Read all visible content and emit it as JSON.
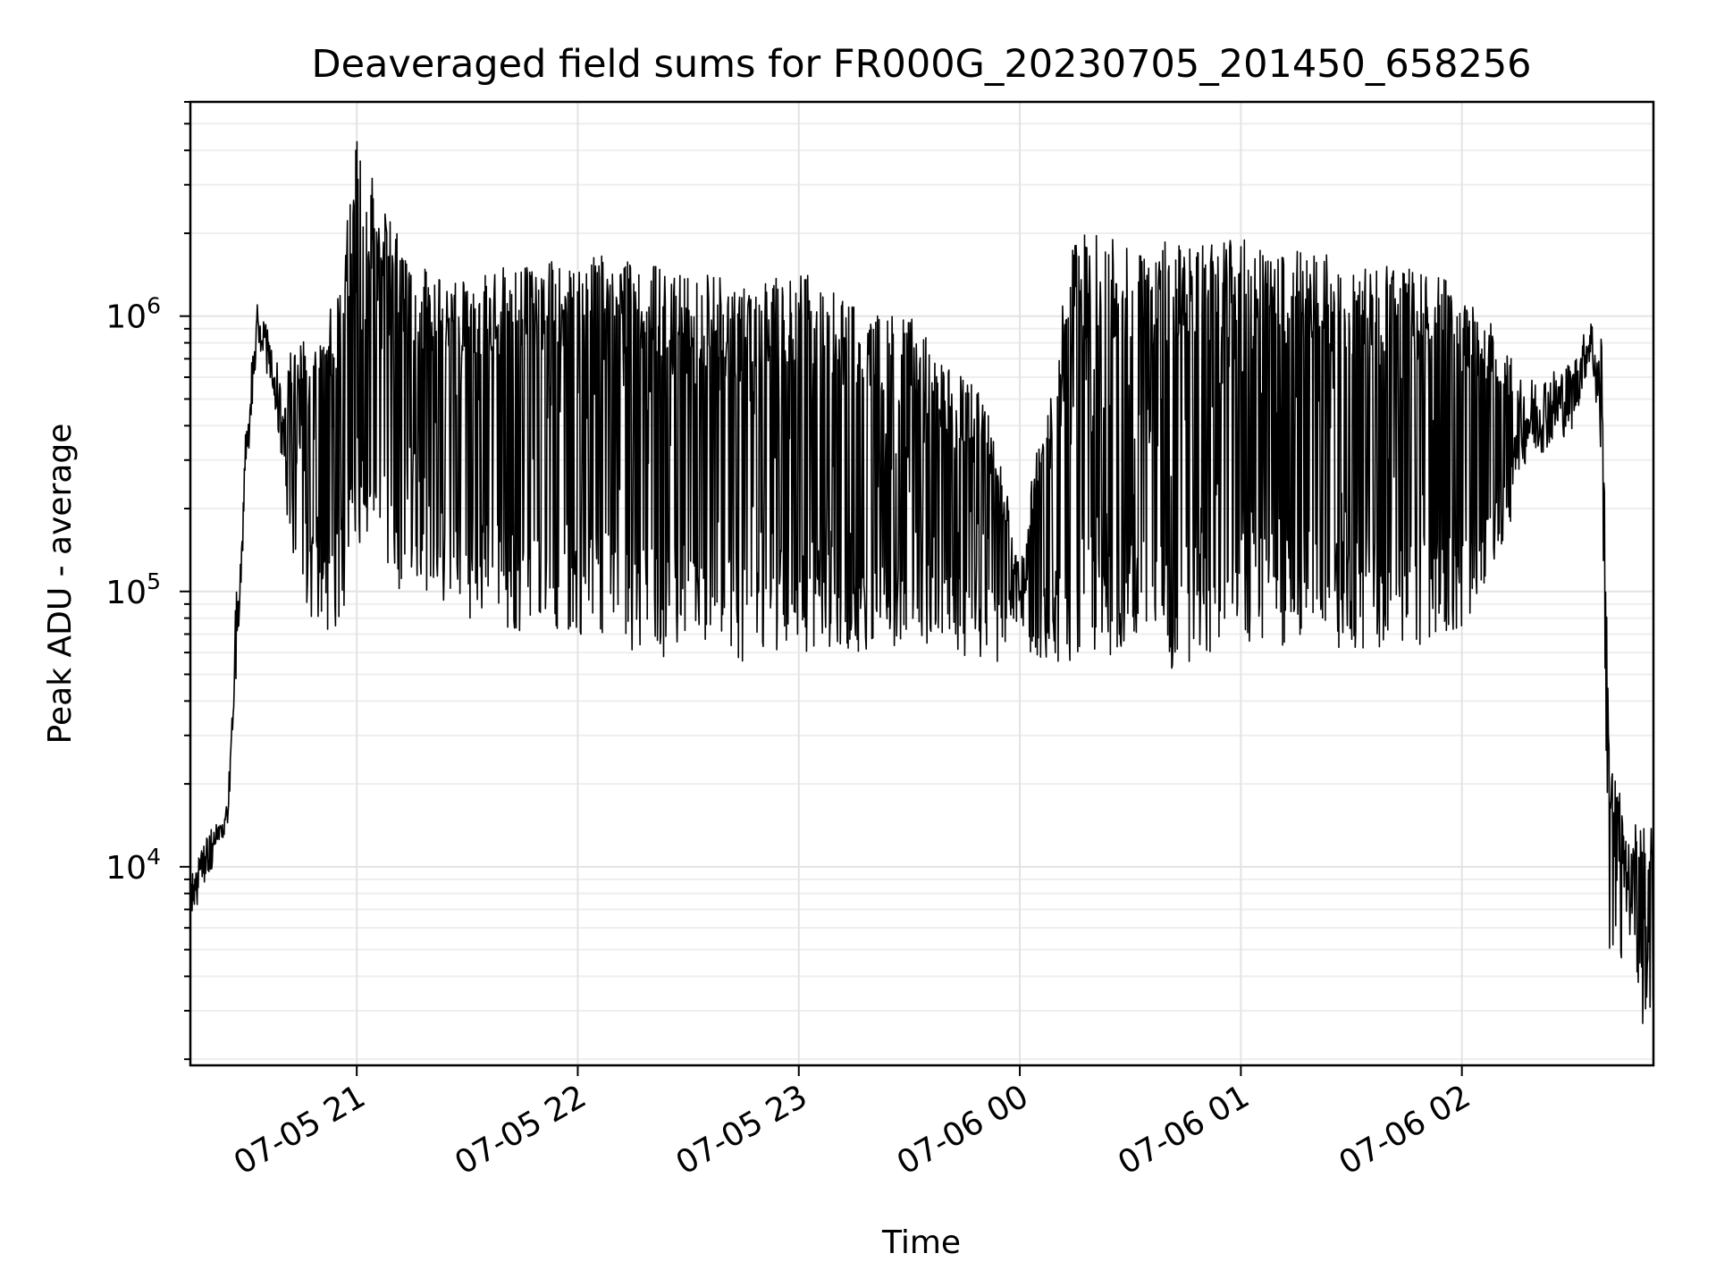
{
  "chart_data": {
    "type": "line",
    "title": "Deaveraged field sums for FR000G_20230705_201450_658256",
    "xlabel": "Time",
    "ylabel": "Peak ADU - average",
    "yscale": "log",
    "xlim": [
      "2023-07-05 20:14:50",
      "2023-07-06 02:52:00"
    ],
    "ylim": [
      1900,
      6000000
    ],
    "grid": true,
    "x_ticks": [
      {
        "t": "2023-07-05 21:00",
        "label": "07-05 21"
      },
      {
        "t": "2023-07-05 22:00",
        "label": "07-05 22"
      },
      {
        "t": "2023-07-05 23:00",
        "label": "07-05 23"
      },
      {
        "t": "2023-07-06 00:00",
        "label": "07-06 00"
      },
      {
        "t": "2023-07-06 01:00",
        "label": "07-06 01"
      },
      {
        "t": "2023-07-06 02:00",
        "label": "07-06 02"
      }
    ],
    "y_ticks": [
      {
        "value": 10000,
        "base": "10",
        "exp": "4"
      },
      {
        "value": 100000,
        "base": "10",
        "exp": "5"
      },
      {
        "value": 1000000,
        "base": "10",
        "exp": "6"
      }
    ],
    "series_color": "#000000",
    "series": [
      {
        "x": [
          "2023-07-05 20:15",
          "2023-07-05 20:20",
          "2023-07-05 20:25",
          "2023-07-05 20:27",
          "2023-07-05 20:30",
          "2023-07-05 20:33",
          "2023-07-05 20:36",
          "2023-07-05 20:40",
          "2023-07-05 20:45",
          "2023-07-05 20:50",
          "2023-07-05 20:55",
          "2023-07-05 21:00",
          "2023-07-05 21:15",
          "2023-07-05 21:30",
          "2023-07-05 21:45",
          "2023-07-05 22:00",
          "2023-07-05 22:15",
          "2023-07-05 22:30",
          "2023-07-05 22:45",
          "2023-07-05 23:00",
          "2023-07-05 23:15",
          "2023-07-05 23:30",
          "2023-07-05 23:40",
          "2023-07-05 23:50",
          "2023-07-06 00:00",
          "2023-07-06 00:15",
          "2023-07-06 00:30",
          "2023-07-06 00:45",
          "2023-07-06 01:00",
          "2023-07-06 01:15",
          "2023-07-06 01:30",
          "2023-07-06 01:45",
          "2023-07-06 02:00",
          "2023-07-06 02:15",
          "2023-07-06 02:30",
          "2023-07-06 02:35",
          "2023-07-06 02:38",
          "2023-07-06 02:40",
          "2023-07-06 02:45",
          "2023-07-06 02:50"
        ],
        "high": [
          10000,
          15000,
          20000,
          100000,
          500000,
          1200000,
          1000000,
          700000,
          800000,
          900000,
          1200000,
          4300000,
          1500000,
          1500000,
          1500000,
          1700000,
          1600000,
          1500000,
          1300000,
          1500000,
          1100000,
          1000000,
          700000,
          550000,
          150000,
          2000000,
          1900000,
          1900000,
          1900000,
          1800000,
          1600000,
          1500000,
          1300000,
          700000,
          800000,
          1100000,
          900000,
          25000,
          15000,
          14000
        ],
        "low": [
          5500,
          8000,
          12000,
          30000,
          200000,
          700000,
          500000,
          200000,
          100000,
          65000,
          70000,
          150000,
          90000,
          80000,
          70000,
          70000,
          60000,
          55000,
          50000,
          60000,
          60000,
          65000,
          60000,
          55000,
          55000,
          55000,
          60000,
          50000,
          60000,
          65000,
          60000,
          60000,
          70000,
          200000,
          300000,
          600000,
          200000,
          5000,
          4000,
          3000
        ],
        "peak_spike": {
          "x": "2023-07-05 21:00",
          "y": 4300000
        },
        "min_dip": {
          "x": "2023-07-06 02:49",
          "y": 2700
        }
      }
    ]
  }
}
